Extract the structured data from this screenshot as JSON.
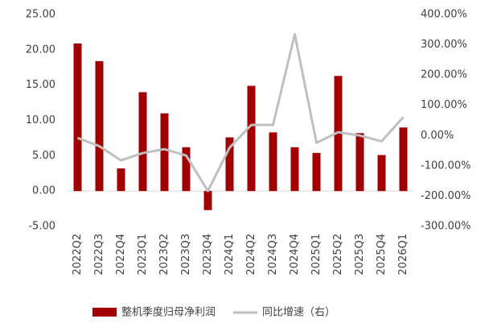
{
  "chart_data": {
    "type": "bar_line",
    "categories": [
      "2022Q2",
      "2022Q3",
      "2022Q4",
      "2023Q1",
      "2023Q2",
      "2023Q3",
      "2023Q4",
      "2024Q1",
      "2024Q2",
      "2024Q3",
      "2024Q4",
      "2025Q1",
      "2025Q2",
      "2025Q3",
      "2025Q4",
      "2026Q1"
    ],
    "series": [
      {
        "name": "整机季度归母净利润",
        "color": "#a00000",
        "type": "bar",
        "axis": "y",
        "values": [
          20.9,
          18.4,
          3.2,
          14.0,
          11.0,
          6.2,
          -2.7,
          7.6,
          14.9,
          8.3,
          6.2,
          5.4,
          16.3,
          8.2,
          5.1,
          9.0
        ]
      },
      {
        "name": "同比增速（右）",
        "color": "#bfbfbf",
        "type": "line",
        "axis": "y2",
        "values": [
          -8,
          -35,
          -82,
          -58,
          -45,
          -66,
          -183,
          -40,
          35,
          35,
          335,
          -24,
          11,
          0,
          -19,
          61
        ]
      }
    ],
    "ylim": [
      -5,
      25
    ],
    "yticks": [
      {
        "value": 25,
        "label": "25.00"
      },
      {
        "value": 20,
        "label": "20.00"
      },
      {
        "value": 15,
        "label": "15.00"
      },
      {
        "value": 10,
        "label": "10.00"
      },
      {
        "value": 5,
        "label": "5.00"
      },
      {
        "value": 0,
        "label": "0.00"
      },
      {
        "value": -5,
        "label": "-5.00"
      }
    ],
    "y2lim": [
      -300,
      400
    ],
    "y2ticks": [
      {
        "value": 400,
        "label": "400.00%"
      },
      {
        "value": 300,
        "label": "300.00%"
      },
      {
        "value": 200,
        "label": "200.00%"
      },
      {
        "value": 100,
        "label": "100.00%"
      },
      {
        "value": 0,
        "label": "0.00%"
      },
      {
        "value": -100,
        "label": "-100.00%"
      },
      {
        "value": -200,
        "label": "-200.00%"
      },
      {
        "value": -300,
        "label": "-300.00%"
      }
    ],
    "grid": false,
    "legend": "bottom"
  }
}
